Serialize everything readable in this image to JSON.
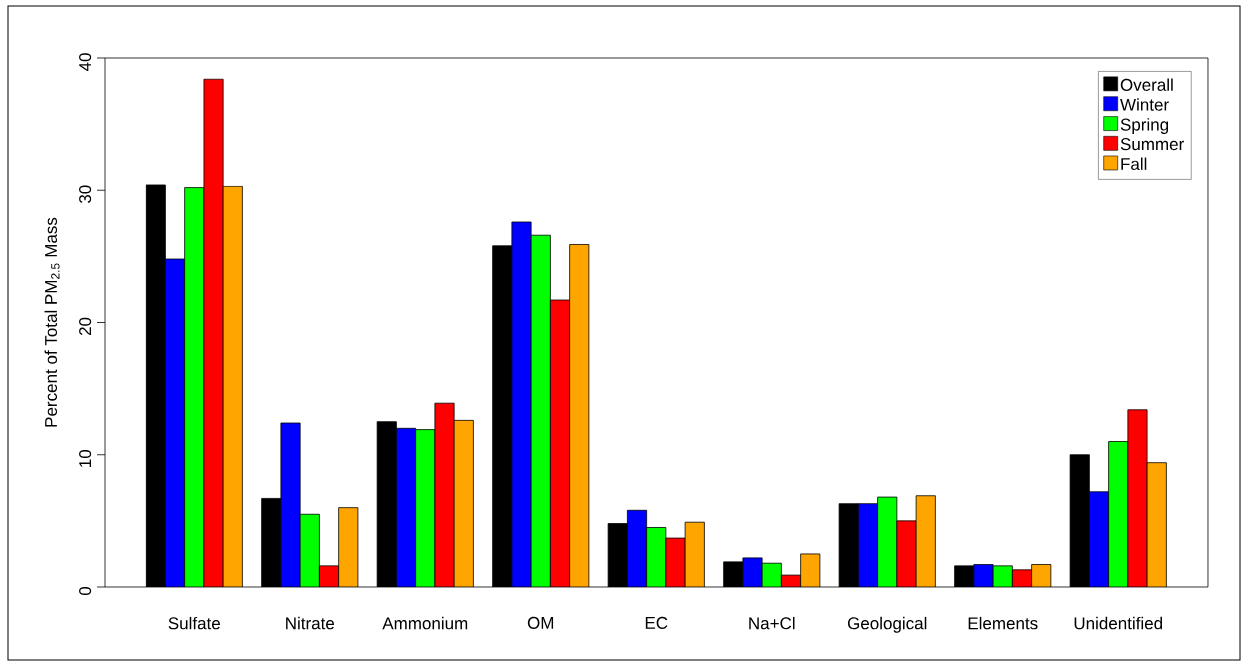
{
  "chart_data": {
    "type": "bar",
    "ylabel": "Percent of Total PM$_{2.5}$ Mass",
    "categories": [
      "Sulfate",
      "Nitrate",
      "Ammonium",
      "OM",
      "EC",
      "Na+Cl",
      "Geological",
      "Elements",
      "Unidentified"
    ],
    "series": [
      {
        "name": "Overall",
        "color": "#000000",
        "values": [
          30.4,
          6.7,
          12.5,
          25.8,
          4.8,
          1.9,
          6.3,
          1.6,
          10.0
        ]
      },
      {
        "name": "Winter",
        "color": "#0000ff",
        "values": [
          24.8,
          12.4,
          12.0,
          27.6,
          5.8,
          2.2,
          6.3,
          1.7,
          7.2
        ]
      },
      {
        "name": "Spring",
        "color": "#00ff00",
        "values": [
          30.2,
          5.5,
          11.9,
          26.6,
          4.5,
          1.8,
          6.8,
          1.6,
          11.0
        ]
      },
      {
        "name": "Summer",
        "color": "#ff0000",
        "values": [
          38.4,
          1.6,
          13.9,
          21.7,
          3.7,
          0.9,
          5.0,
          1.3,
          13.4
        ]
      },
      {
        "name": "Fall",
        "color": "#ffa500",
        "values": [
          30.3,
          6.0,
          12.6,
          25.9,
          4.9,
          2.5,
          6.9,
          1.7,
          9.4
        ]
      }
    ],
    "ylim": [
      0,
      40
    ],
    "yticks": [
      0,
      10,
      20,
      30,
      40
    ],
    "legend": "top right"
  }
}
